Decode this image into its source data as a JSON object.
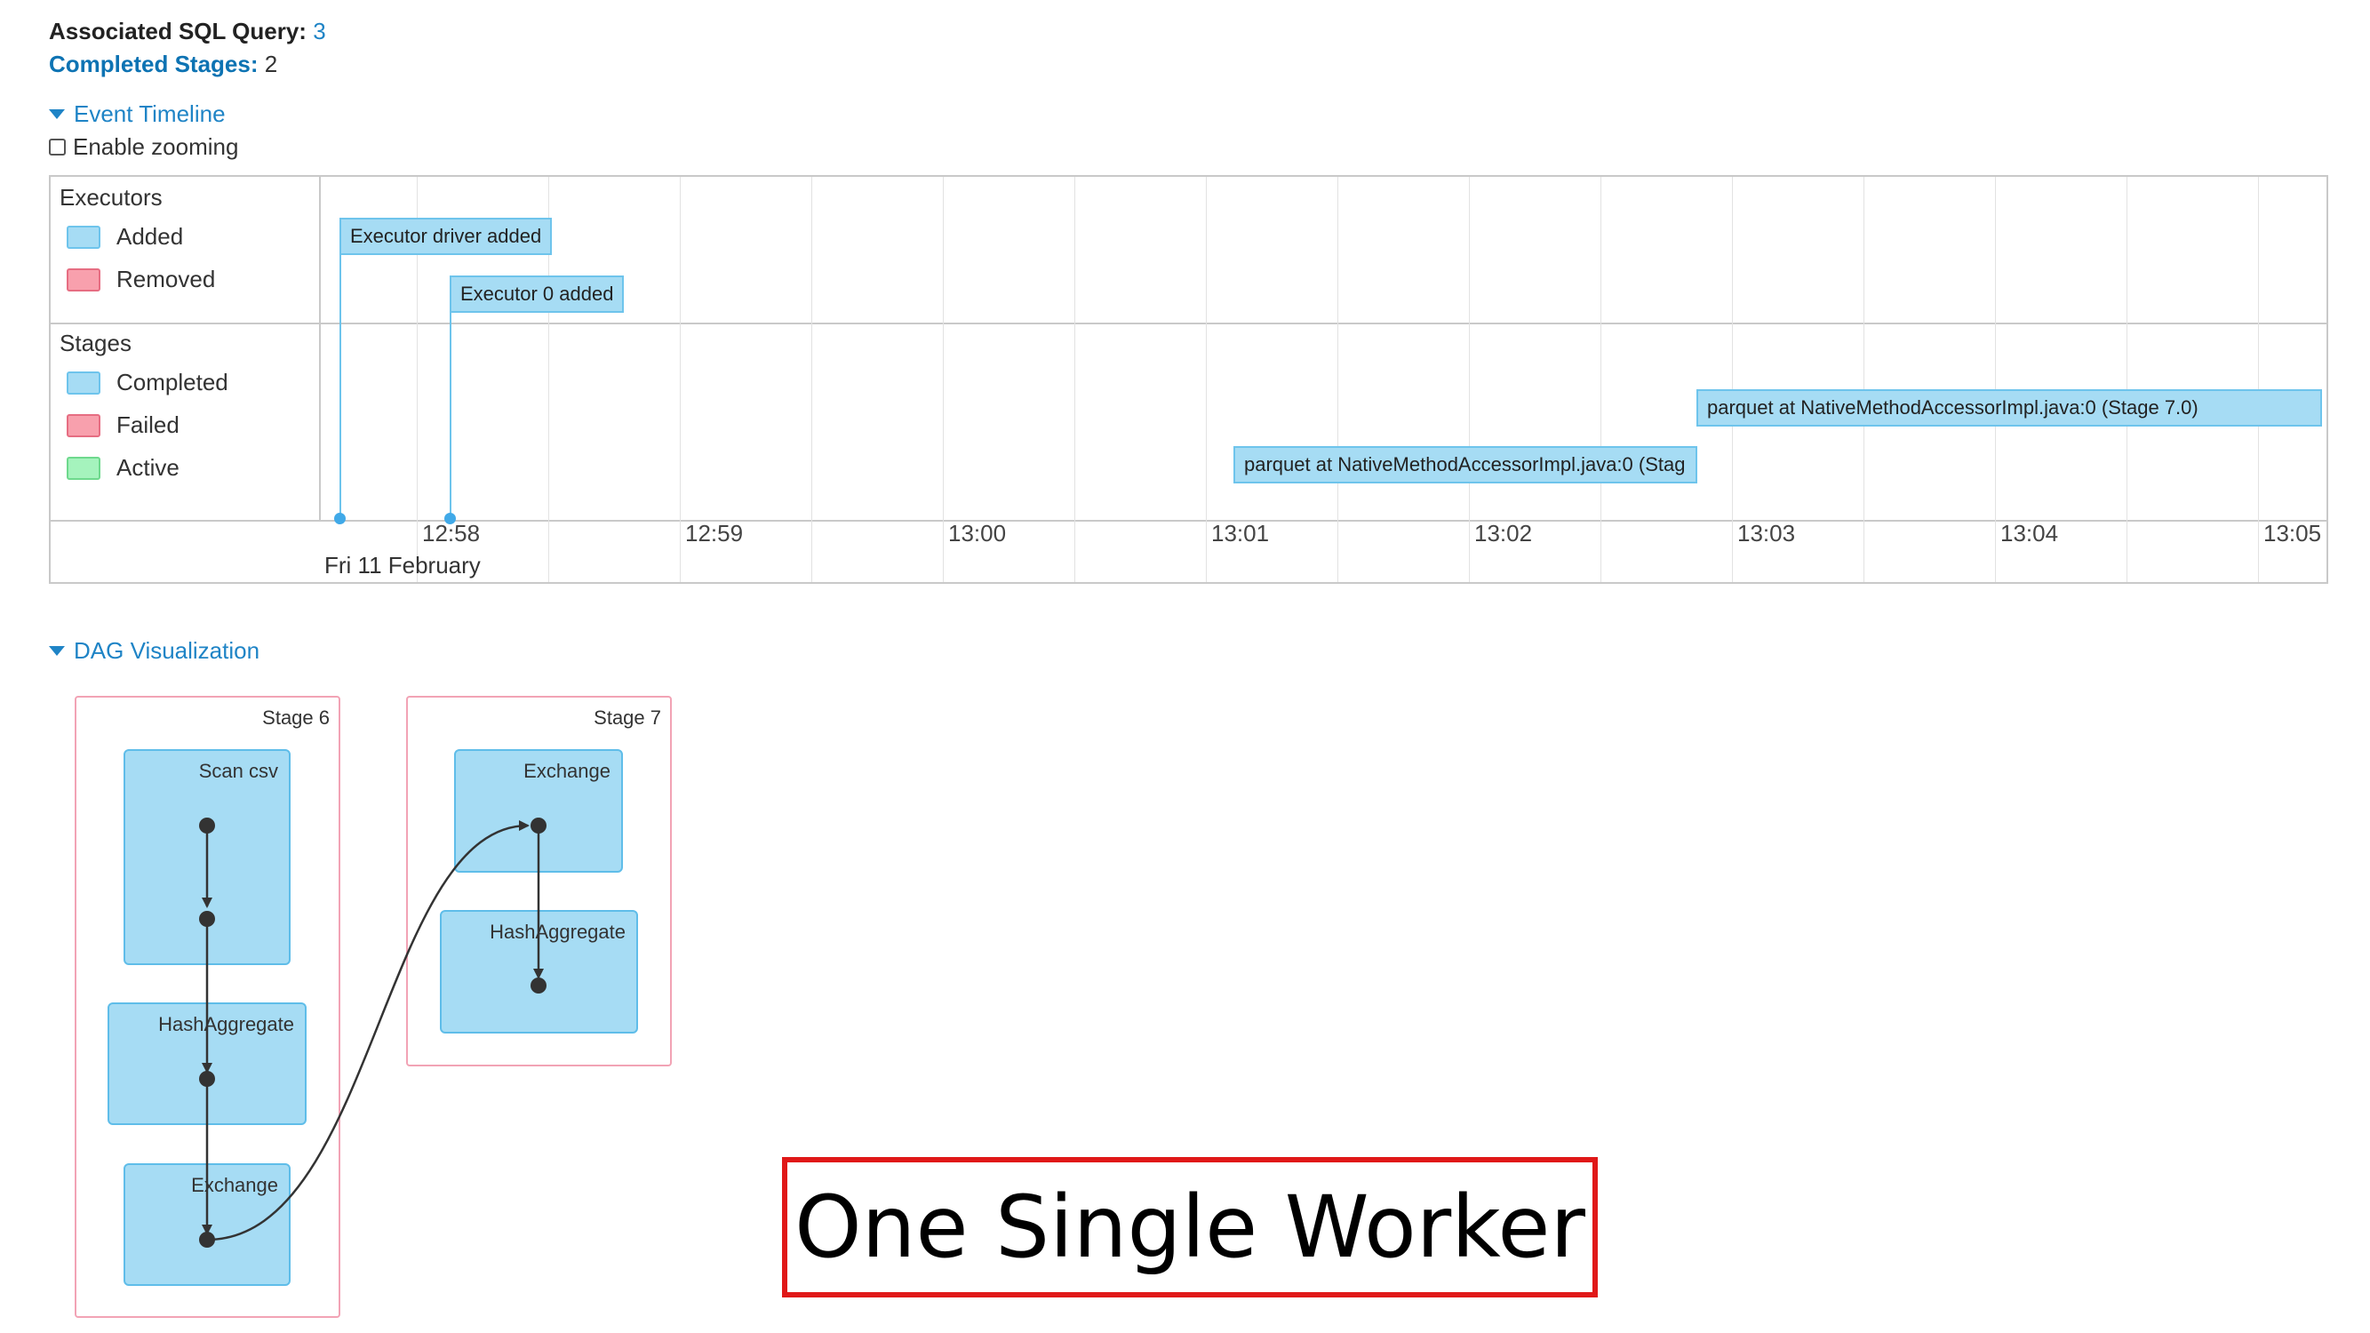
{
  "job_info": {
    "sql_query_label": "Associated SQL Query:",
    "sql_query_value": "3",
    "completed_stages_label": "Completed Stages:",
    "completed_stages_value": "2"
  },
  "event_timeline": {
    "toggle_label": "Event Timeline",
    "enable_zooming_label": "Enable zooming",
    "enable_zooming_checked": false,
    "executors_group": {
      "title": "Executors",
      "legend": [
        {
          "label": "Added",
          "color": "#a6dcf4"
        },
        {
          "label": "Removed",
          "color": "#f8a0ad"
        }
      ],
      "events": [
        {
          "label": "Executor driver added"
        },
        {
          "label": "Executor 0 added"
        }
      ]
    },
    "stages_group": {
      "title": "Stages",
      "legend": [
        {
          "label": "Completed",
          "color": "#a6dcf4"
        },
        {
          "label": "Failed",
          "color": "#f8a0ad"
        },
        {
          "label": "Active",
          "color": "#a5f3bd"
        }
      ],
      "events": [
        {
          "label": "parquet at NativeMethodAccessorImpl.java:0 (Stage 7.0)"
        },
        {
          "label": "parquet at NativeMethodAccessorImpl.java:0 (Stag"
        }
      ]
    },
    "axis_ticks": [
      "12:58",
      "12:59",
      "13:00",
      "13:01",
      "13:02",
      "13:03",
      "13:04",
      "13:05"
    ],
    "date_label": "Fri 11 February"
  },
  "dag_visualization": {
    "toggle_label": "DAG Visualization",
    "stages": [
      {
        "title": "Stage 6",
        "operators": [
          "Scan csv",
          "HashAggregate",
          "Exchange"
        ]
      },
      {
        "title": "Stage 7",
        "operators": [
          "Exchange",
          "HashAggregate"
        ]
      }
    ],
    "node_color": "#a6dcf4",
    "cluster_border_color": "#f2a3b5"
  },
  "callout": {
    "text": "One Single Worker",
    "border_color": "#e01818"
  }
}
